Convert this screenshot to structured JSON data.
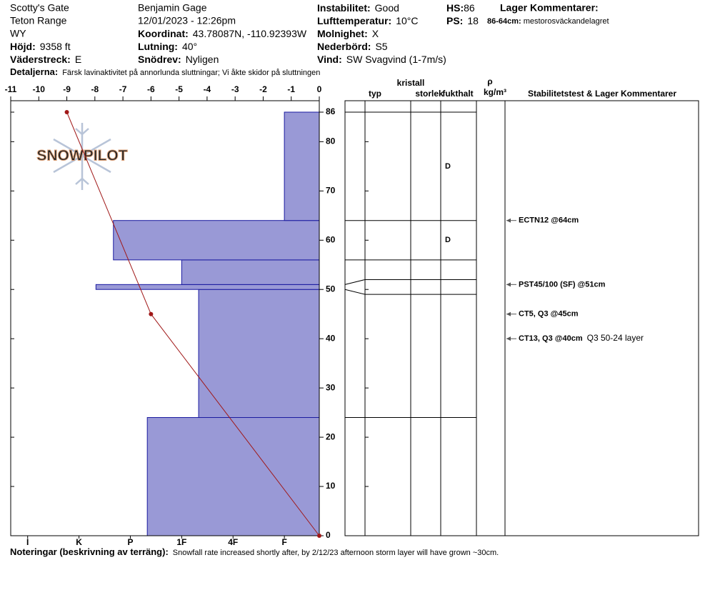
{
  "header": {
    "location": "Scotty's Gate",
    "range": "Teton Range",
    "state": "WY",
    "elevation": {
      "label": "Höjd:",
      "value": "9358 ft"
    },
    "aspect": {
      "label": "Väderstreck:",
      "value": "E"
    },
    "observer": "Benjamin Gage",
    "datetime": "12/01/2023 - 12:26pm",
    "coordinates": {
      "label": "Koordinat:",
      "value": "43.78087N, -110.92393W"
    },
    "slope": {
      "label": "Lutning:",
      "value": "40°"
    },
    "wind_loading": {
      "label": "Snödrev:",
      "value": "Nyligen"
    },
    "stability": {
      "label": "Instabilitet:",
      "value": "Good"
    },
    "air_temp": {
      "label": "Lufttemperatur:",
      "value": "10°C"
    },
    "sky": {
      "label": "Molnighet:",
      "value": "X"
    },
    "precip": {
      "label": "Nederbörd:",
      "value": "S5"
    },
    "wind": {
      "label": "Vind:",
      "value": "SW Svagvind (1-7m/s)"
    },
    "hs": {
      "label": "HS:",
      "value": "86"
    },
    "ps": {
      "label": "PS:",
      "value": "18"
    },
    "layer_comments_title": "Lager Kommentarer:",
    "layer_comment": {
      "label": "86-64cm:",
      "value": "mestorosväckandelagret"
    },
    "details": {
      "label": "Detaljerna:",
      "value": "Färsk lavinaktivitet på annorlunda sluttningar; Vi åkte skidor på sluttningen"
    }
  },
  "logo": "SNOWPILOT",
  "chart_data": {
    "type": "snow-profile",
    "ylim": [
      0,
      86
    ],
    "yticks": [
      0,
      10,
      20,
      30,
      40,
      50,
      60,
      70,
      80,
      86
    ],
    "temperature": {
      "xlim": [
        -11,
        0
      ],
      "xticks": [
        -11,
        -10,
        -9,
        -8,
        -7,
        -6,
        -5,
        -4,
        -3,
        -2,
        -1,
        0
      ],
      "heights": [
        86,
        45,
        0
      ],
      "values": [
        -9,
        -6,
        0
      ],
      "color": "#a01818"
    },
    "hardness": {
      "xlim": [
        0.32,
        6.33
      ],
      "xticks": [
        {
          "value": 1,
          "label": "F"
        },
        {
          "value": 2,
          "label": "4F"
        },
        {
          "value": 3,
          "label": "1F"
        },
        {
          "value": 4,
          "label": "P"
        },
        {
          "value": 5,
          "label": "K"
        },
        {
          "value": 6,
          "label": "I"
        }
      ],
      "color": "#9999d6",
      "edge": "#1a1aa0",
      "layers": [
        {
          "bottom": 0,
          "top": 24,
          "value": 3.67
        },
        {
          "bottom": 24,
          "top": 50,
          "value": 2.67
        },
        {
          "bottom": 50,
          "top": 51,
          "value": 4.67
        },
        {
          "bottom": 51,
          "top": 56,
          "value": 3
        },
        {
          "bottom": 56,
          "top": 64,
          "value": 4.33
        },
        {
          "bottom": 64,
          "top": 86,
          "value": 1
        }
      ]
    },
    "columns": {
      "crystal": "kristall",
      "type": "typ",
      "size": "storlek",
      "moisture": "fukthalt",
      "rho": "ρ",
      "density_unit": "kg/m³",
      "tests": "Stabilitetstest & Lager Kommentarer"
    },
    "layer_boundaries": [
      {
        "left": 86,
        "right": 86
      },
      {
        "left": 64,
        "right": 64
      },
      {
        "left": 56,
        "right": 56
      },
      {
        "left": 51,
        "right": 52
      },
      {
        "left": 50,
        "right": 49
      },
      {
        "left": 24,
        "right": 24
      }
    ],
    "moisture": [
      {
        "height": 75,
        "label": "D"
      },
      {
        "height": 60,
        "label": "D"
      }
    ],
    "tests": [
      {
        "height": 64,
        "label": "ECTN12 @64cm"
      },
      {
        "height": 51,
        "label": "PST45/100 (SF) @51cm"
      },
      {
        "height": 45,
        "label": "CT5, Q3 @45cm"
      },
      {
        "height": 40,
        "label": "CT13, Q3 @40cm",
        "comment": "Q3 50-24 layer"
      }
    ]
  },
  "notes": {
    "label": "Noteringar (beskrivning av terräng):",
    "value": "Snowfall rate increased shortly after, by 2/12/23 afternoon storm layer will have grown ~30cm."
  }
}
